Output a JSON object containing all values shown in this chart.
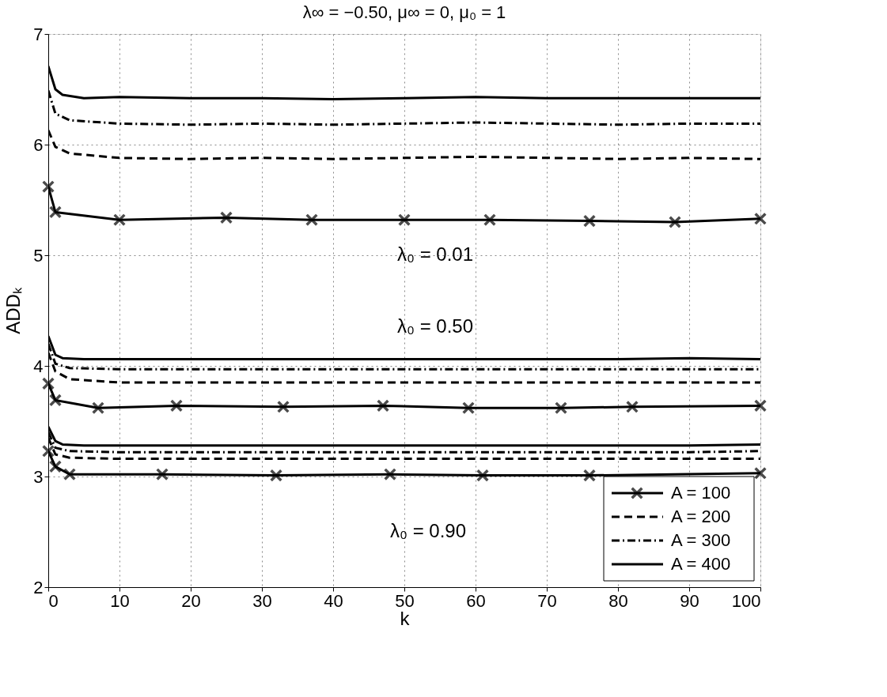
{
  "chart_data": {
    "type": "line",
    "title": "λ∞ = −0.50, μ∞ = 0, μ₀ = 1",
    "xlabel": "k",
    "ylabel": "ADDₖ",
    "xlim": [
      0,
      100
    ],
    "ylim": [
      2,
      7
    ],
    "xticks": [
      0,
      10,
      20,
      30,
      40,
      50,
      60,
      70,
      80,
      90,
      100
    ],
    "yticks": [
      2,
      3,
      4,
      5,
      6,
      7
    ],
    "grid": true,
    "legend": "bottom right",
    "annotations": [
      "λ₀ = 0.01",
      "λ₀ = 0.50",
      "λ₀ = 0.90"
    ],
    "series": [
      {
        "name": "A = 100",
        "color": "#000000",
        "line_style": "solid",
        "marker": "cross",
        "x": [
          0,
          1,
          10,
          25,
          37,
          50,
          62,
          76,
          88,
          100
        ],
        "values": [
          5.62,
          5.39,
          5.32,
          5.34,
          5.32,
          5.32,
          5.32,
          5.31,
          5.3,
          5.33
        ]
      },
      {
        "name": "A = 200",
        "color": "#000000",
        "line_style": "dashed",
        "marker": "none",
        "x": [
          0,
          1,
          3,
          10,
          20,
          30,
          40,
          50,
          60,
          70,
          80,
          90,
          100
        ],
        "values": [
          6.13,
          5.98,
          5.92,
          5.88,
          5.87,
          5.88,
          5.87,
          5.88,
          5.89,
          5.88,
          5.87,
          5.88,
          5.87
        ]
      },
      {
        "name": "A = 300",
        "color": "#000000",
        "line_style": "dashdot",
        "marker": "none",
        "x": [
          0,
          1,
          3,
          10,
          20,
          30,
          40,
          50,
          60,
          70,
          80,
          90,
          100
        ],
        "values": [
          6.49,
          6.28,
          6.22,
          6.19,
          6.18,
          6.19,
          6.18,
          6.19,
          6.2,
          6.19,
          6.18,
          6.19,
          6.19
        ]
      },
      {
        "name": "A = 400",
        "color": "#000000",
        "line_style": "solid",
        "marker": "none",
        "x": [
          0,
          1,
          2,
          5,
          10,
          20,
          30,
          40,
          50,
          60,
          70,
          80,
          90,
          100
        ],
        "values": [
          6.71,
          6.5,
          6.45,
          6.42,
          6.43,
          6.42,
          6.42,
          6.41,
          6.42,
          6.43,
          6.42,
          6.42,
          6.42,
          6.42
        ]
      },
      {
        "color": "#000000",
        "line_style": "solid",
        "marker": "cross",
        "x": [
          0,
          1,
          7,
          18,
          33,
          47,
          59,
          72,
          82,
          100
        ],
        "values": [
          3.84,
          3.69,
          3.62,
          3.64,
          3.63,
          3.64,
          3.62,
          3.62,
          3.63,
          3.64
        ]
      },
      {
        "color": "#000000",
        "line_style": "dashed",
        "marker": "none",
        "x": [
          0,
          1,
          3,
          10,
          20,
          30,
          40,
          50,
          60,
          70,
          80,
          90,
          100
        ],
        "values": [
          4.12,
          3.95,
          3.88,
          3.85,
          3.85,
          3.85,
          3.85,
          3.85,
          3.85,
          3.85,
          3.85,
          3.85,
          3.85
        ]
      },
      {
        "color": "#000000",
        "line_style": "dashdot",
        "marker": "none",
        "x": [
          0,
          1,
          3,
          10,
          20,
          30,
          40,
          50,
          60,
          70,
          80,
          90,
          100
        ],
        "values": [
          4.2,
          4.02,
          3.98,
          3.97,
          3.97,
          3.97,
          3.97,
          3.97,
          3.97,
          3.97,
          3.97,
          3.97,
          3.97
        ]
      },
      {
        "color": "#000000",
        "line_style": "solid",
        "marker": "none",
        "x": [
          0,
          1,
          2,
          5,
          10,
          20,
          30,
          40,
          50,
          60,
          70,
          80,
          90,
          100
        ],
        "values": [
          4.27,
          4.1,
          4.07,
          4.06,
          4.06,
          4.06,
          4.06,
          4.06,
          4.06,
          4.06,
          4.06,
          4.06,
          4.07,
          4.06
        ]
      },
      {
        "color": "#000000",
        "line_style": "solid",
        "marker": "cross",
        "x": [
          0,
          1,
          3,
          16,
          32,
          48,
          61,
          76,
          100
        ],
        "values": [
          3.23,
          3.09,
          3.02,
          3.02,
          3.01,
          3.02,
          3.01,
          3.01,
          3.03
        ]
      },
      {
        "color": "#000000",
        "line_style": "dashed",
        "marker": "none",
        "x": [
          0,
          1,
          3,
          10,
          20,
          30,
          40,
          50,
          60,
          70,
          80,
          90,
          100
        ],
        "values": [
          3.35,
          3.2,
          3.17,
          3.16,
          3.16,
          3.16,
          3.16,
          3.16,
          3.16,
          3.16,
          3.16,
          3.16,
          3.16
        ]
      },
      {
        "color": "#000000",
        "line_style": "dashdot",
        "marker": "none",
        "x": [
          0,
          1,
          3,
          10,
          20,
          30,
          40,
          50,
          60,
          70,
          80,
          90,
          100
        ],
        "values": [
          3.4,
          3.26,
          3.23,
          3.22,
          3.22,
          3.22,
          3.22,
          3.22,
          3.22,
          3.22,
          3.22,
          3.22,
          3.23
        ]
      },
      {
        "color": "#000000",
        "line_style": "solid",
        "marker": "none",
        "x": [
          0,
          1,
          2,
          5,
          10,
          20,
          30,
          40,
          50,
          60,
          70,
          80,
          90,
          100
        ],
        "values": [
          3.45,
          3.32,
          3.29,
          3.28,
          3.28,
          3.28,
          3.28,
          3.28,
          3.28,
          3.28,
          3.28,
          3.28,
          3.28,
          3.29
        ]
      }
    ]
  }
}
